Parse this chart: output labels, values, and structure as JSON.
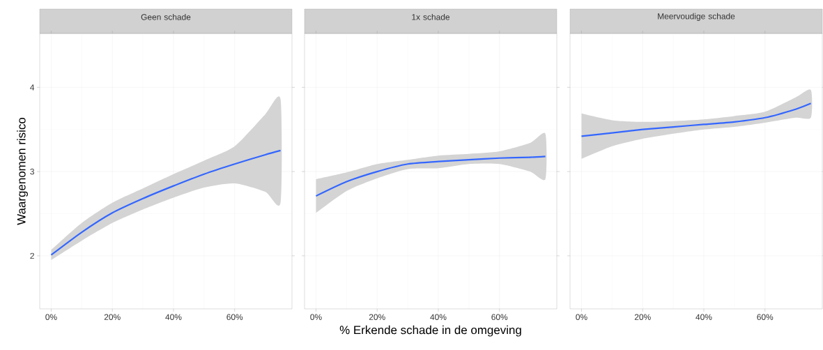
{
  "chart_data": [
    {
      "type": "line",
      "title": "Geen schade",
      "ylabel": "Waargenomen risico",
      "x": [
        0,
        10,
        20,
        30,
        40,
        50,
        60,
        70,
        75
      ],
      "series": [
        {
          "color": "#3366ff",
          "values": [
            2.01,
            2.28,
            2.51,
            2.68,
            2.83,
            2.97,
            3.09,
            3.2,
            3.25
          ],
          "lower": [
            1.95,
            2.18,
            2.39,
            2.55,
            2.69,
            2.81,
            2.86,
            2.76,
            2.63
          ],
          "upper": [
            2.07,
            2.39,
            2.63,
            2.8,
            2.97,
            3.13,
            3.3,
            3.68,
            3.86
          ]
        }
      ],
      "xlim": [
        -3.75,
        78.75
      ],
      "ylim": [
        1.37,
        4.64
      ],
      "xticks": [
        {
          "value": 0,
          "label": "0%"
        },
        {
          "value": 20,
          "label": "20%"
        },
        {
          "value": 40,
          "label": "40%"
        },
        {
          "value": 60,
          "label": "60%"
        }
      ],
      "yticks": [
        2,
        3,
        4
      ],
      "grid": true
    },
    {
      "type": "line",
      "title": "1x schade",
      "xlabel": "% Erkende schade in de omgeving",
      "x": [
        0,
        10,
        20,
        30,
        40,
        50,
        60,
        70,
        75
      ],
      "series": [
        {
          "color": "#3366ff",
          "values": [
            2.71,
            2.88,
            3.0,
            3.09,
            3.12,
            3.14,
            3.16,
            3.17,
            3.18
          ],
          "lower": [
            2.51,
            2.77,
            2.92,
            3.03,
            3.04,
            3.09,
            3.09,
            3.0,
            2.91
          ],
          "upper": [
            2.91,
            2.99,
            3.09,
            3.14,
            3.19,
            3.21,
            3.24,
            3.34,
            3.45
          ]
        }
      ],
      "xlim": [
        -3.75,
        78.75
      ],
      "ylim": [
        1.37,
        4.64
      ],
      "xticks": [
        {
          "value": 0,
          "label": "0%"
        },
        {
          "value": 20,
          "label": "20%"
        },
        {
          "value": 40,
          "label": "40%"
        },
        {
          "value": 60,
          "label": "60%"
        }
      ],
      "yticks": [
        2,
        3,
        4
      ],
      "grid": true,
      "tick_labels": "x"
    },
    {
      "type": "line",
      "title": "Meervoudige schade",
      "x": [
        0,
        10,
        20,
        30,
        40,
        50,
        60,
        70,
        75
      ],
      "series": [
        {
          "color": "#3366ff",
          "values": [
            3.42,
            3.46,
            3.5,
            3.53,
            3.56,
            3.59,
            3.64,
            3.74,
            3.81
          ],
          "lower": [
            3.15,
            3.3,
            3.39,
            3.45,
            3.5,
            3.53,
            3.58,
            3.64,
            3.64
          ],
          "upper": [
            3.69,
            3.61,
            3.59,
            3.6,
            3.62,
            3.66,
            3.71,
            3.88,
            3.97
          ]
        }
      ],
      "xlim": [
        -3.75,
        78.75
      ],
      "ylim": [
        1.37,
        4.64
      ],
      "xticks": [
        {
          "value": 0,
          "label": "0%"
        },
        {
          "value": 20,
          "label": "20%"
        },
        {
          "value": 40,
          "label": "40%"
        },
        {
          "value": 60,
          "label": "60%"
        }
      ],
      "yticks": [
        2,
        3,
        4
      ],
      "grid": true,
      "tick_labels": "x"
    }
  ]
}
